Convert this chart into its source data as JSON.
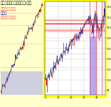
{
  "subtitle": "重要目標値レベル（ドル/円）",
  "legend_upper": "上値目標レベル",
  "legend_current": "現在値",
  "legend_lower": "下値目標レベル",
  "bg_color": "#ffffcc",
  "border_color": "#ffff00",
  "upper_line_color": "#ff9999",
  "lower_line_color": "#ff9999",
  "current_line_color": "#ff0000",
  "blue_bar_color": "#2222cc",
  "red_bar_color": "#dd0000",
  "light_blue_color": "#8888ff",
  "light_red_color": "#ffaaaa",
  "line_color": "#555555",
  "legend_upper_color": "#ff4444",
  "legend_current_color": "#0000cc",
  "legend_lower_color": "#ff4444",
  "grid_color": "#bbbbbb"
}
